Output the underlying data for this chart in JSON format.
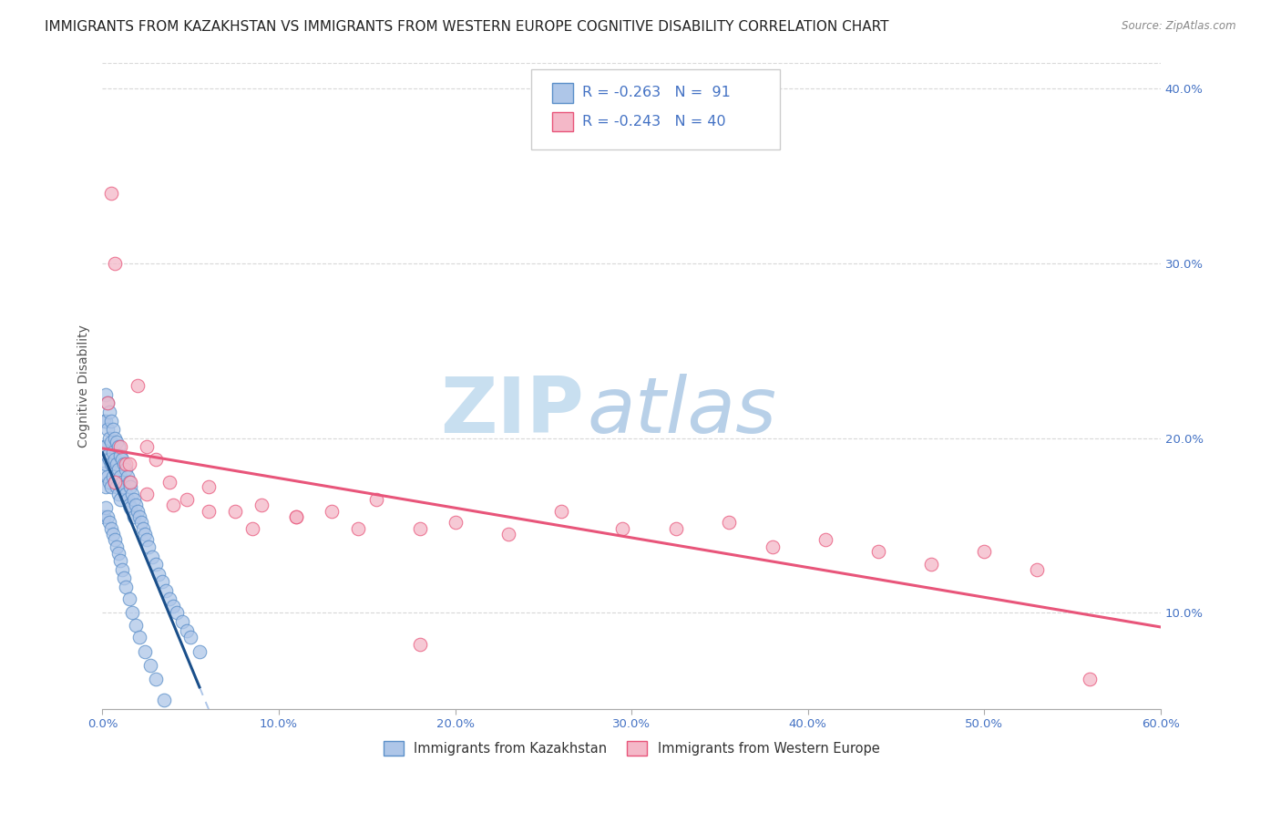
{
  "title": "IMMIGRANTS FROM KAZAKHSTAN VS IMMIGRANTS FROM WESTERN EUROPE COGNITIVE DISABILITY CORRELATION CHART",
  "source": "Source: ZipAtlas.com",
  "ylabel": "Cognitive Disability",
  "legend_label_1": "Immigrants from Kazakhstan",
  "legend_label_2": "Immigrants from Western Europe",
  "r1": -0.263,
  "n1": 91,
  "r2": -0.243,
  "n2": 40,
  "color1_fill": "#aec6e8",
  "color1_edge": "#5b8fc9",
  "color1_line": "#1a4f8a",
  "color1_dash": "#aec6e8",
  "color2_fill": "#f4b8c8",
  "color2_edge": "#e8557a",
  "color2_line": "#e8557a",
  "xlim": [
    0.0,
    0.6
  ],
  "ylim": [
    0.045,
    0.415
  ],
  "xticks": [
    0.0,
    0.1,
    0.2,
    0.3,
    0.4,
    0.5,
    0.6
  ],
  "yticks": [
    0.1,
    0.2,
    0.3,
    0.4
  ],
  "background": "#ffffff",
  "watermark_zip": "ZIP",
  "watermark_atlas": "atlas",
  "watermark_zip_color": "#c8dff0",
  "watermark_atlas_color": "#b8d0e8",
  "title_fontsize": 11,
  "axis_label_fontsize": 10,
  "tick_fontsize": 9.5,
  "kazakhstan_x": [
    0.001,
    0.001,
    0.001,
    0.002,
    0.002,
    0.002,
    0.002,
    0.002,
    0.003,
    0.003,
    0.003,
    0.003,
    0.004,
    0.004,
    0.004,
    0.004,
    0.005,
    0.005,
    0.005,
    0.005,
    0.006,
    0.006,
    0.006,
    0.007,
    0.007,
    0.007,
    0.008,
    0.008,
    0.008,
    0.009,
    0.009,
    0.009,
    0.01,
    0.01,
    0.01,
    0.011,
    0.011,
    0.012,
    0.012,
    0.013,
    0.013,
    0.014,
    0.014,
    0.015,
    0.015,
    0.016,
    0.016,
    0.017,
    0.018,
    0.018,
    0.019,
    0.02,
    0.021,
    0.022,
    0.023,
    0.024,
    0.025,
    0.026,
    0.028,
    0.03,
    0.032,
    0.034,
    0.036,
    0.038,
    0.04,
    0.042,
    0.045,
    0.048,
    0.05,
    0.055,
    0.001,
    0.002,
    0.003,
    0.004,
    0.005,
    0.006,
    0.007,
    0.008,
    0.009,
    0.01,
    0.011,
    0.012,
    0.013,
    0.015,
    0.017,
    0.019,
    0.021,
    0.024,
    0.027,
    0.03,
    0.035
  ],
  "kazakhstan_y": [
    0.21,
    0.195,
    0.18,
    0.225,
    0.21,
    0.195,
    0.185,
    0.172,
    0.22,
    0.205,
    0.19,
    0.178,
    0.215,
    0.2,
    0.188,
    0.175,
    0.21,
    0.198,
    0.185,
    0.172,
    0.205,
    0.192,
    0.178,
    0.2,
    0.188,
    0.175,
    0.198,
    0.185,
    0.172,
    0.195,
    0.182,
    0.168,
    0.19,
    0.178,
    0.165,
    0.188,
    0.175,
    0.185,
    0.172,
    0.182,
    0.168,
    0.178,
    0.165,
    0.175,
    0.162,
    0.172,
    0.16,
    0.168,
    0.165,
    0.155,
    0.162,
    0.158,
    0.155,
    0.152,
    0.148,
    0.145,
    0.142,
    0.138,
    0.132,
    0.128,
    0.122,
    0.118,
    0.113,
    0.108,
    0.104,
    0.1,
    0.095,
    0.09,
    0.086,
    0.078,
    0.155,
    0.16,
    0.155,
    0.152,
    0.148,
    0.145,
    0.142,
    0.138,
    0.134,
    0.13,
    0.125,
    0.12,
    0.115,
    0.108,
    0.1,
    0.093,
    0.086,
    0.078,
    0.07,
    0.062,
    0.05
  ],
  "western_x": [
    0.003,
    0.005,
    0.007,
    0.01,
    0.013,
    0.016,
    0.02,
    0.025,
    0.03,
    0.038,
    0.048,
    0.06,
    0.075,
    0.09,
    0.11,
    0.13,
    0.155,
    0.18,
    0.2,
    0.23,
    0.26,
    0.295,
    0.325,
    0.355,
    0.38,
    0.41,
    0.44,
    0.47,
    0.5,
    0.53,
    0.007,
    0.015,
    0.025,
    0.04,
    0.06,
    0.085,
    0.11,
    0.145,
    0.18,
    0.56
  ],
  "western_y": [
    0.22,
    0.34,
    0.3,
    0.195,
    0.185,
    0.175,
    0.23,
    0.195,
    0.188,
    0.175,
    0.165,
    0.172,
    0.158,
    0.162,
    0.155,
    0.158,
    0.165,
    0.148,
    0.152,
    0.145,
    0.158,
    0.148,
    0.148,
    0.152,
    0.138,
    0.142,
    0.135,
    0.128,
    0.135,
    0.125,
    0.175,
    0.185,
    0.168,
    0.162,
    0.158,
    0.148,
    0.155,
    0.148,
    0.082,
    0.062
  ]
}
